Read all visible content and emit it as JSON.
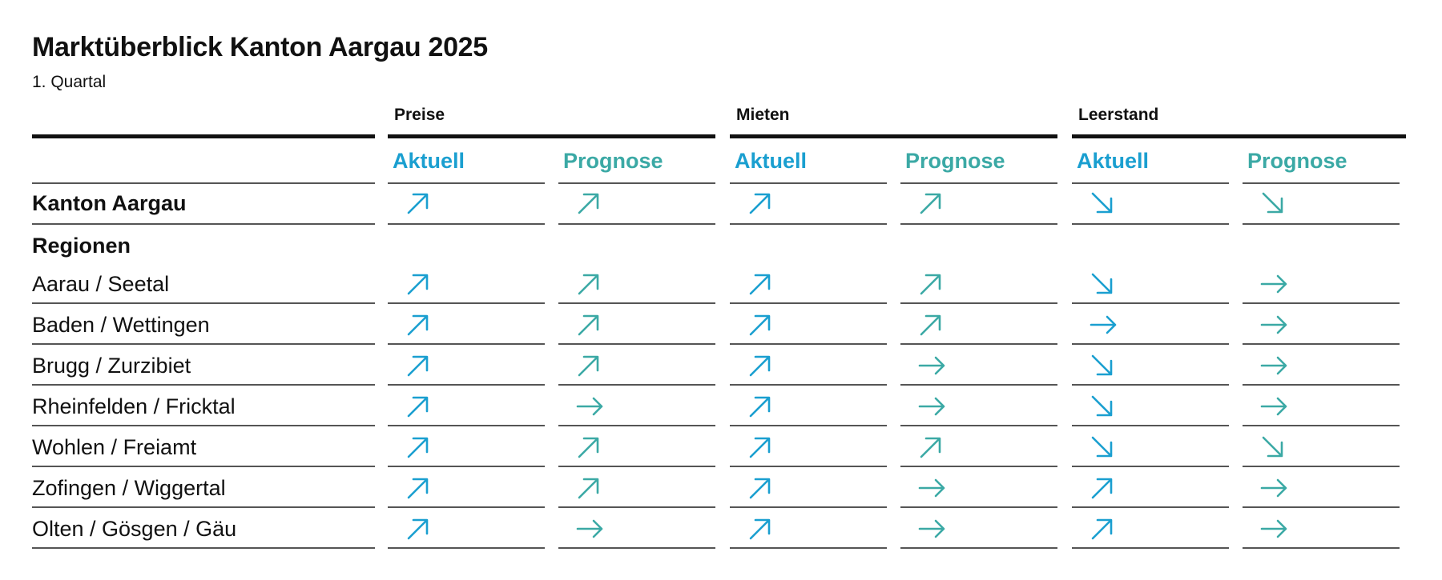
{
  "title": "Marktüberblick Kanton Aargau 2025",
  "subtitle": "1. Quartal",
  "groups": [
    "Preise",
    "Mieten",
    "Leerstand"
  ],
  "column_headers": [
    "Aktuell",
    "Prognose",
    "Aktuell",
    "Prognose",
    "Aktuell",
    "Prognose"
  ],
  "colors": {
    "aktuell": "#1A9FD0",
    "prognose": "#3BA9A5",
    "text": "#111111"
  },
  "section_label": "Regionen",
  "summary_row": {
    "label": "Kanton Aargau",
    "trends": [
      "up",
      "up",
      "up",
      "up",
      "down",
      "down"
    ]
  },
  "rows": [
    {
      "label": "Aarau / Seetal",
      "trends": [
        "up",
        "up",
        "up",
        "up",
        "down",
        "flat"
      ]
    },
    {
      "label": "Baden / Wettingen",
      "trends": [
        "up",
        "up",
        "up",
        "up",
        "flat",
        "flat"
      ]
    },
    {
      "label": "Brugg / Zurzibiet",
      "trends": [
        "up",
        "up",
        "up",
        "flat",
        "down",
        "flat"
      ]
    },
    {
      "label": "Rheinfelden / Fricktal",
      "trends": [
        "up",
        "flat",
        "up",
        "flat",
        "down",
        "flat"
      ]
    },
    {
      "label": "Wohlen / Freiamt",
      "trends": [
        "up",
        "up",
        "up",
        "up",
        "down",
        "down"
      ]
    },
    {
      "label": "Zofingen / Wiggertal",
      "trends": [
        "up",
        "up",
        "up",
        "flat",
        "up",
        "flat"
      ]
    },
    {
      "label": "Olten / Gösgen / Gäu",
      "trends": [
        "up",
        "flat",
        "up",
        "flat",
        "up",
        "flat"
      ]
    }
  ]
}
